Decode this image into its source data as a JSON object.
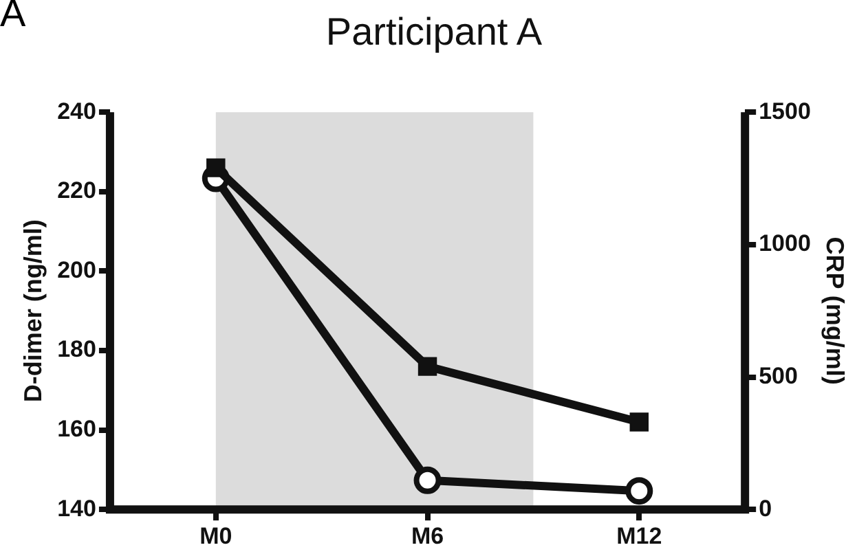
{
  "chart_data": {
    "type": "line",
    "title": "Participant A",
    "ylabel": "D-dimer (ng/ml)",
    "y2label": "CRP (mg/ml)",
    "annotations": [
      "A"
    ],
    "categories": [
      "M0",
      "M6",
      "M12"
    ],
    "ylim": [
      140,
      240
    ],
    "yticks": [
      140,
      160,
      180,
      200,
      220,
      240
    ],
    "y2lim": [
      0,
      1500
    ],
    "y2ticks": [
      0,
      500,
      1000,
      1500
    ],
    "series": [
      {
        "color": "#111111",
        "values": [
          226,
          176,
          162
        ],
        "marker": "square"
      },
      {
        "color": "#111111",
        "values": [
          1250,
          110,
          70
        ],
        "marker": "circle",
        "axis": "y2"
      }
    ],
    "bands": [
      {
        "axis": "x",
        "from": "M0",
        "to": "M6",
        "color": "#dcdcdc"
      }
    ],
    "grid": false,
    "legend": false,
    "line_style": "solid"
  }
}
